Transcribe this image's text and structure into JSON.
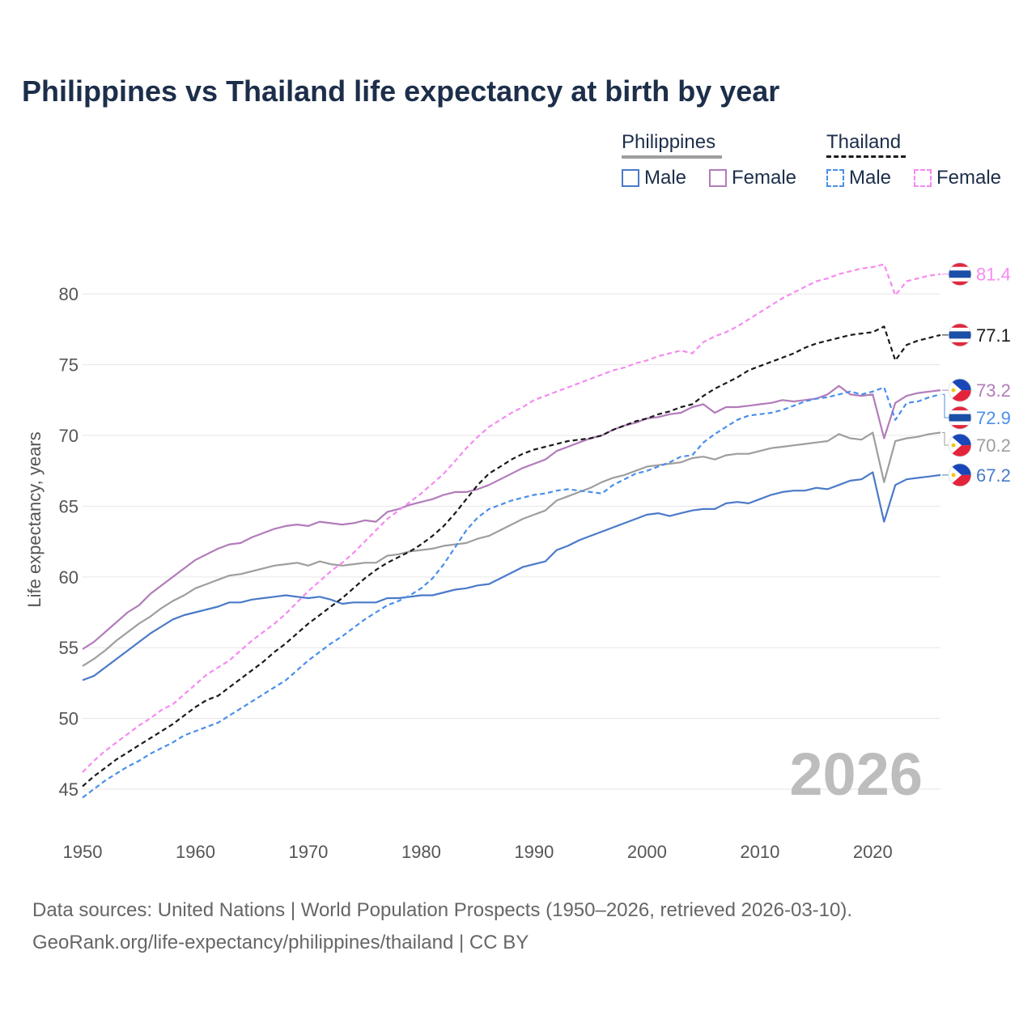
{
  "title": "Philippines vs Thailand life expectancy at birth by year",
  "legend": {
    "philippines": {
      "label": "Philippines",
      "male": "Male",
      "female": "Female"
    },
    "thailand": {
      "label": "Thailand",
      "male": "Male",
      "female": "Female"
    }
  },
  "footer": {
    "line1": "Data sources: United Nations | World Population Prospects (1950–2026, retrieved 2026-03-10).",
    "line2": "GeoRank.org/life-expectancy/philippines/thailand | CC BY"
  },
  "colors": {
    "ph_total": "#9e9e9e",
    "ph_male": "#4a7ac8",
    "ph_female": "#b27cba",
    "th_total": "#1a1a1a",
    "th_male": "#4a8fea",
    "th_female": "#f58af0",
    "grid": "#e6e6e6",
    "axis_text": "#555555",
    "watermark": "#bdbdbd"
  },
  "chart_data": {
    "type": "line",
    "ylabel": "Life expectancy, years",
    "xlim": [
      1950,
      2026
    ],
    "ylim": [
      43,
      83.5
    ],
    "yticks": [
      45,
      50,
      55,
      60,
      65,
      70,
      75,
      80
    ],
    "xticks": [
      1950,
      1960,
      1970,
      1980,
      1990,
      2000,
      2010,
      2020
    ],
    "year_label": "2026",
    "x_start": 1950,
    "series": [
      {
        "key": "th_female",
        "name": "Thailand Female",
        "color": "#f58af0",
        "dashed": true,
        "end_label": "81.4",
        "end_value": 81.4,
        "flag": "thailand",
        "values": [
          46.2,
          47.0,
          47.7,
          48.3,
          48.9,
          49.5,
          50.0,
          50.6,
          51.0,
          51.7,
          52.4,
          53.1,
          53.6,
          54.1,
          54.8,
          55.5,
          56.1,
          56.7,
          57.4,
          58.2,
          59.0,
          59.7,
          60.4,
          61.0,
          61.7,
          62.5,
          63.3,
          64.1,
          64.7,
          65.3,
          65.9,
          66.6,
          67.3,
          68.2,
          69.1,
          69.9,
          70.6,
          71.1,
          71.6,
          72.0,
          72.5,
          72.8,
          73.1,
          73.4,
          73.7,
          74.0,
          74.3,
          74.6,
          74.8,
          75.1,
          75.3,
          75.6,
          75.8,
          76.0,
          75.8,
          76.6,
          77.0,
          77.3,
          77.7,
          78.2,
          78.7,
          79.2,
          79.7,
          80.1,
          80.5,
          80.9,
          81.1,
          81.4,
          81.6,
          81.8,
          81.9,
          82.1,
          79.9,
          80.9,
          81.1,
          81.3,
          81.4
        ]
      },
      {
        "key": "th_total",
        "name": "Thailand Total",
        "color": "#1a1a1a",
        "dashed": true,
        "end_label": "77.1",
        "end_value": 77.1,
        "flag": "thailand",
        "values": [
          45.2,
          45.9,
          46.5,
          47.1,
          47.6,
          48.1,
          48.6,
          49.1,
          49.6,
          50.2,
          50.8,
          51.3,
          51.6,
          52.2,
          52.8,
          53.4,
          54.0,
          54.7,
          55.3,
          56.0,
          56.7,
          57.3,
          57.9,
          58.5,
          59.2,
          59.9,
          60.5,
          61.0,
          61.4,
          61.8,
          62.3,
          62.9,
          63.6,
          64.5,
          65.5,
          66.5,
          67.3,
          67.8,
          68.3,
          68.7,
          69.0,
          69.2,
          69.4,
          69.6,
          69.7,
          69.8,
          70.0,
          70.4,
          70.7,
          71.0,
          71.2,
          71.5,
          71.7,
          72.0,
          72.2,
          72.8,
          73.3,
          73.7,
          74.1,
          74.6,
          74.9,
          75.2,
          75.5,
          75.8,
          76.2,
          76.5,
          76.7,
          76.9,
          77.1,
          77.2,
          77.3,
          77.7,
          75.3,
          76.4,
          76.7,
          76.9,
          77.1
        ]
      },
      {
        "key": "ph_female",
        "name": "Philippines Female",
        "color": "#b27cba",
        "dashed": false,
        "end_label": "73.2",
        "end_value": 73.2,
        "flag": "philippines",
        "values": [
          54.9,
          55.4,
          56.1,
          56.8,
          57.5,
          58.0,
          58.8,
          59.4,
          60.0,
          60.6,
          61.2,
          61.6,
          62.0,
          62.3,
          62.4,
          62.8,
          63.1,
          63.4,
          63.6,
          63.7,
          63.6,
          63.9,
          63.8,
          63.7,
          63.8,
          64.0,
          63.9,
          64.6,
          64.8,
          65.1,
          65.3,
          65.5,
          65.8,
          66.0,
          66.0,
          66.2,
          66.5,
          66.9,
          67.3,
          67.7,
          68.0,
          68.3,
          68.9,
          69.2,
          69.5,
          69.8,
          70.0,
          70.4,
          70.7,
          70.9,
          71.2,
          71.3,
          71.5,
          71.6,
          72.0,
          72.2,
          71.6,
          72.0,
          72.0,
          72.1,
          72.2,
          72.3,
          72.5,
          72.4,
          72.5,
          72.6,
          72.9,
          73.5,
          72.9,
          72.8,
          72.9,
          69.8,
          72.3,
          72.8,
          73.0,
          73.1,
          73.2
        ]
      },
      {
        "key": "th_male",
        "name": "Thailand Male",
        "color": "#4a8fea",
        "dashed": true,
        "end_label": "72.9",
        "end_value": 72.9,
        "flag": "thailand",
        "values": [
          44.4,
          45.0,
          45.6,
          46.1,
          46.6,
          47.0,
          47.5,
          47.9,
          48.3,
          48.8,
          49.1,
          49.4,
          49.7,
          50.2,
          50.7,
          51.2,
          51.7,
          52.2,
          52.7,
          53.4,
          54.1,
          54.7,
          55.3,
          55.8,
          56.4,
          57.0,
          57.5,
          58.0,
          58.3,
          58.7,
          59.2,
          59.9,
          60.9,
          62.1,
          63.3,
          64.2,
          64.8,
          65.1,
          65.4,
          65.6,
          65.8,
          65.9,
          66.1,
          66.2,
          66.1,
          66.0,
          65.9,
          66.5,
          66.9,
          67.3,
          67.5,
          67.8,
          68.1,
          68.5,
          68.6,
          69.5,
          70.1,
          70.6,
          71.1,
          71.4,
          71.5,
          71.6,
          71.8,
          72.1,
          72.4,
          72.6,
          72.7,
          72.9,
          73.1,
          72.9,
          73.1,
          73.4,
          71.1,
          72.3,
          72.4,
          72.7,
          72.9
        ]
      },
      {
        "key": "ph_total",
        "name": "Philippines Total",
        "color": "#9e9e9e",
        "dashed": false,
        "end_label": "70.2",
        "end_value": 70.2,
        "flag": "philippines",
        "values": [
          53.7,
          54.2,
          54.8,
          55.5,
          56.1,
          56.7,
          57.2,
          57.8,
          58.3,
          58.7,
          59.2,
          59.5,
          59.8,
          60.1,
          60.2,
          60.4,
          60.6,
          60.8,
          60.9,
          61.0,
          60.8,
          61.1,
          60.9,
          60.8,
          60.9,
          61.0,
          61.0,
          61.5,
          61.6,
          61.8,
          61.9,
          62.0,
          62.2,
          62.3,
          62.4,
          62.7,
          62.9,
          63.3,
          63.7,
          64.1,
          64.4,
          64.7,
          65.4,
          65.7,
          66.0,
          66.3,
          66.7,
          67.0,
          67.2,
          67.5,
          67.8,
          67.9,
          68.0,
          68.1,
          68.4,
          68.5,
          68.3,
          68.6,
          68.7,
          68.7,
          68.9,
          69.1,
          69.2,
          69.3,
          69.4,
          69.5,
          69.6,
          70.1,
          69.8,
          69.7,
          70.2,
          66.7,
          69.6,
          69.8,
          69.9,
          70.1,
          70.2
        ]
      },
      {
        "key": "ph_male",
        "name": "Philippines Male",
        "color": "#4a7ac8",
        "dashed": false,
        "end_label": "67.2",
        "end_value": 67.2,
        "flag": "philippines",
        "values": [
          52.7,
          53.0,
          53.6,
          54.2,
          54.8,
          55.4,
          56.0,
          56.5,
          57.0,
          57.3,
          57.5,
          57.7,
          57.9,
          58.2,
          58.2,
          58.4,
          58.5,
          58.6,
          58.7,
          58.6,
          58.5,
          58.6,
          58.4,
          58.1,
          58.2,
          58.2,
          58.2,
          58.5,
          58.5,
          58.6,
          58.7,
          58.7,
          58.9,
          59.1,
          59.2,
          59.4,
          59.5,
          59.9,
          60.3,
          60.7,
          60.9,
          61.1,
          61.9,
          62.2,
          62.6,
          62.9,
          63.2,
          63.5,
          63.8,
          64.1,
          64.4,
          64.5,
          64.3,
          64.5,
          64.7,
          64.8,
          64.8,
          65.2,
          65.3,
          65.2,
          65.5,
          65.8,
          66.0,
          66.1,
          66.1,
          66.3,
          66.2,
          66.5,
          66.8,
          66.9,
          67.4,
          63.9,
          66.5,
          66.9,
          67.0,
          67.1,
          67.2
        ]
      }
    ]
  }
}
